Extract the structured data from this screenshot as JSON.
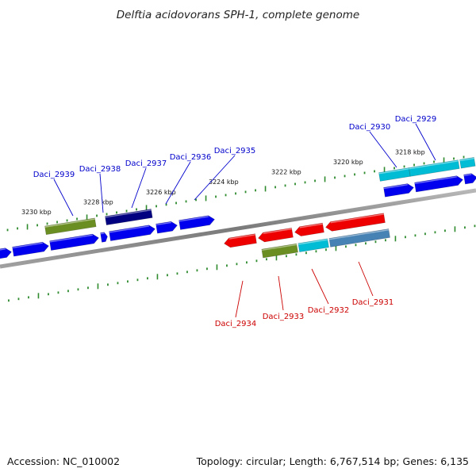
{
  "title": "Delftia acidovorans SPH-1, complete genome",
  "footer": {
    "accession": "Accession: NC_010002",
    "summary": "Topology: circular; Length: 6,767,514 bp; Genes: 6,135"
  },
  "colors": {
    "background": "#ffffff",
    "backbone": "#8a8a8a",
    "tick": "#2e8b2e",
    "forward_gene": "#0000ee",
    "reverse_gene": "#ee0000",
    "label_forward": "#0000cc",
    "label_reverse": "#cc0000",
    "cog_green": "#6b8e23",
    "cog_navy": "#000080",
    "cog_cyan": "#00bcd4",
    "cog_steel": "#4682b4"
  },
  "ticks": [
    {
      "label": "3230 kbp"
    },
    {
      "label": "3228 kbp"
    },
    {
      "label": "3226 kbp"
    },
    {
      "label": "3224 kbp"
    },
    {
      "label": "3222 kbp"
    },
    {
      "label": "3220 kbp"
    },
    {
      "label": "3218 kbp"
    }
  ],
  "genes": [
    {
      "label": "Daci_2939",
      "strand": "forward"
    },
    {
      "label": "Daci_2938",
      "strand": "forward"
    },
    {
      "label": "Daci_2937",
      "strand": "forward"
    },
    {
      "label": "Daci_2936",
      "strand": "forward"
    },
    {
      "label": "Daci_2935",
      "strand": "forward"
    },
    {
      "label": "Daci_2930",
      "strand": "forward"
    },
    {
      "label": "Daci_2929",
      "strand": "forward"
    },
    {
      "label": "Daci_2934",
      "strand": "reverse"
    },
    {
      "label": "Daci_2933",
      "strand": "reverse"
    },
    {
      "label": "Daci_2932",
      "strand": "reverse"
    },
    {
      "label": "Daci_2931",
      "strand": "reverse"
    }
  ]
}
